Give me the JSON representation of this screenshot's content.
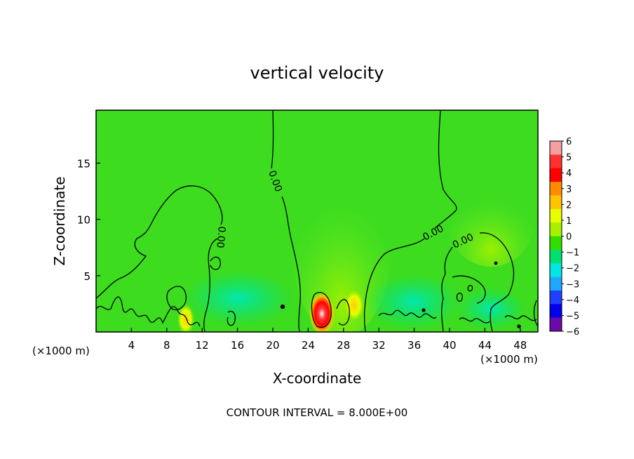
{
  "chart_data": {
    "type": "heatmap",
    "title": "vertical velocity",
    "xlabel": "X-coordinate",
    "ylabel": "Z-coordinate",
    "x_unit_left": "(×1000 m)",
    "x_unit_right": "(×1000 m)",
    "xlim": [
      0,
      50
    ],
    "ylim": [
      0,
      19.7
    ],
    "x_ticks": [
      4,
      8,
      12,
      16,
      20,
      24,
      28,
      32,
      36,
      40,
      44,
      48
    ],
    "y_ticks": [
      5,
      10,
      15
    ],
    "contour_interval_text": "CONTOUR INTERVAL = 8.000E+00",
    "contour_labels": [
      "0.00",
      "0.00",
      "0.00",
      "0.00"
    ],
    "colorbar": {
      "levels": [
        6,
        5,
        4,
        3,
        2,
        1,
        0,
        -1,
        -2,
        -3,
        -4,
        -5,
        -6
      ],
      "colors": [
        "#f4a0a0",
        "#ff3030",
        "#ff0000",
        "#ff8c00",
        "#ffc400",
        "#e8ff00",
        "#a6f000",
        "#33dd00",
        "#00e070",
        "#00e8e0",
        "#20a8ff",
        "#2040ff",
        "#0000ee",
        "#6a0aa8"
      ]
    },
    "colors": {
      "background_field": "#3ddc1e",
      "positive_plume": "#5ce82a",
      "negative_zone": "#00e27a",
      "contour": "#000000"
    }
  }
}
